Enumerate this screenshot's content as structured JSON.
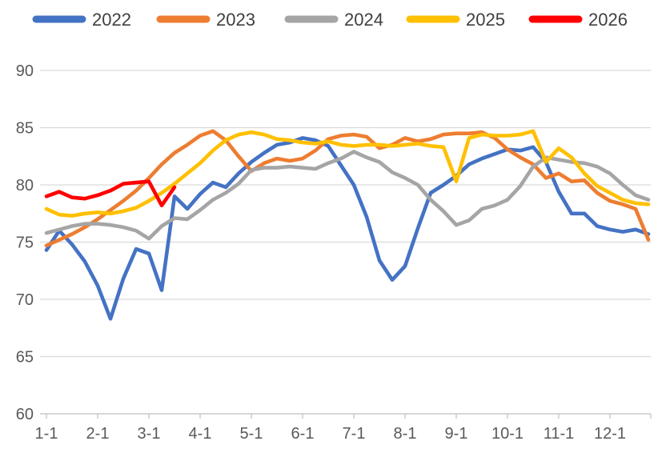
{
  "chart_data": {
    "type": "line",
    "title": "",
    "xlabel": "",
    "ylabel": "",
    "ylim": [
      60,
      90
    ],
    "y_ticks": [
      90,
      85,
      80,
      75,
      70,
      65,
      60
    ],
    "x_tick_labels": [
      "1-1",
      "2-1",
      "3-1",
      "4-1",
      "5-1",
      "6-1",
      "7-1",
      "8-1",
      "9-1",
      "10-1",
      "11-1",
      "12-1"
    ],
    "x_unit": "month-day (weekly samples)",
    "x_weeks": [
      "1-1",
      "1-8",
      "1-15",
      "1-22",
      "2-1",
      "2-8",
      "2-15",
      "2-22",
      "3-1",
      "3-8",
      "3-15",
      "3-22",
      "4-1",
      "4-8",
      "4-15",
      "4-22",
      "5-1",
      "5-8",
      "5-15",
      "5-22",
      "6-1",
      "6-8",
      "6-15",
      "6-22",
      "7-1",
      "7-8",
      "7-15",
      "7-22",
      "8-1",
      "8-8",
      "8-15",
      "8-22",
      "9-1",
      "9-8",
      "9-15",
      "9-22",
      "10-1",
      "10-8",
      "10-15",
      "10-22",
      "11-1",
      "11-8",
      "11-15",
      "11-22",
      "12-1",
      "12-8",
      "12-15",
      "12-22"
    ],
    "grid": "horizontal",
    "legend_position": "top",
    "series": [
      {
        "name": "2022",
        "color": "#4472C4",
        "values": [
          74.3,
          76.0,
          74.8,
          73.3,
          71.2,
          68.3,
          71.8,
          74.4,
          74.0,
          70.8,
          79.0,
          77.9,
          79.2,
          80.2,
          79.8,
          81.0,
          82.0,
          82.8,
          83.5,
          83.7,
          84.1,
          83.9,
          83.4,
          81.7,
          80.0,
          77.2,
          73.4,
          71.7,
          72.9,
          76.2,
          79.3,
          80.0,
          80.8,
          81.8,
          82.3,
          82.7,
          83.1,
          83.0,
          83.3,
          82.0,
          79.4,
          77.5,
          77.5,
          76.4,
          76.1,
          75.9,
          76.1,
          75.7
        ]
      },
      {
        "name": "2023",
        "color": "#ED7D31",
        "values": [
          74.7,
          75.2,
          75.7,
          76.3,
          77.0,
          77.8,
          78.6,
          79.5,
          80.6,
          81.8,
          82.8,
          83.5,
          84.3,
          84.7,
          83.9,
          82.5,
          81.2,
          81.9,
          82.3,
          82.1,
          82.3,
          83.0,
          84.0,
          84.3,
          84.4,
          84.2,
          83.2,
          83.5,
          84.1,
          83.8,
          84.0,
          84.4,
          84.5,
          84.5,
          84.6,
          84.1,
          83.1,
          82.4,
          81.8,
          80.6,
          81.0,
          80.3,
          80.4,
          79.3,
          78.6,
          78.3,
          77.9,
          75.2
        ]
      },
      {
        "name": "2024",
        "color": "#A5A5A5",
        "values": [
          75.8,
          76.1,
          76.4,
          76.6,
          76.6,
          76.5,
          76.3,
          76.0,
          75.3,
          76.4,
          77.1,
          77.0,
          77.8,
          78.7,
          79.3,
          80.1,
          81.3,
          81.5,
          81.5,
          81.6,
          81.5,
          81.4,
          81.9,
          82.3,
          82.9,
          82.4,
          82.0,
          81.1,
          80.6,
          80.0,
          78.7,
          77.7,
          76.5,
          76.9,
          77.9,
          78.2,
          78.7,
          79.9,
          81.6,
          82.4,
          82.2,
          82.0,
          81.9,
          81.6,
          81.0,
          80.0,
          79.1,
          78.7
        ]
      },
      {
        "name": "2025",
        "color": "#FFC000",
        "values": [
          77.9,
          77.4,
          77.3,
          77.5,
          77.6,
          77.5,
          77.7,
          78.0,
          78.6,
          79.3,
          80.1,
          81.0,
          81.9,
          83.0,
          83.9,
          84.4,
          84.6,
          84.4,
          84.0,
          83.9,
          83.7,
          83.6,
          83.8,
          83.5,
          83.4,
          83.5,
          83.5,
          83.4,
          83.5,
          83.6,
          83.4,
          83.3,
          80.3,
          84.1,
          84.4,
          84.3,
          84.3,
          84.4,
          84.7,
          82.0,
          83.2,
          82.4,
          81.0,
          79.9,
          79.3,
          78.7,
          78.4,
          78.3
        ]
      },
      {
        "name": "2026",
        "color": "#FF0000",
        "values": [
          79.0,
          79.4,
          78.9,
          78.8,
          79.1,
          79.5,
          80.1,
          80.2,
          80.3,
          78.2,
          79.8
        ]
      }
    ]
  }
}
